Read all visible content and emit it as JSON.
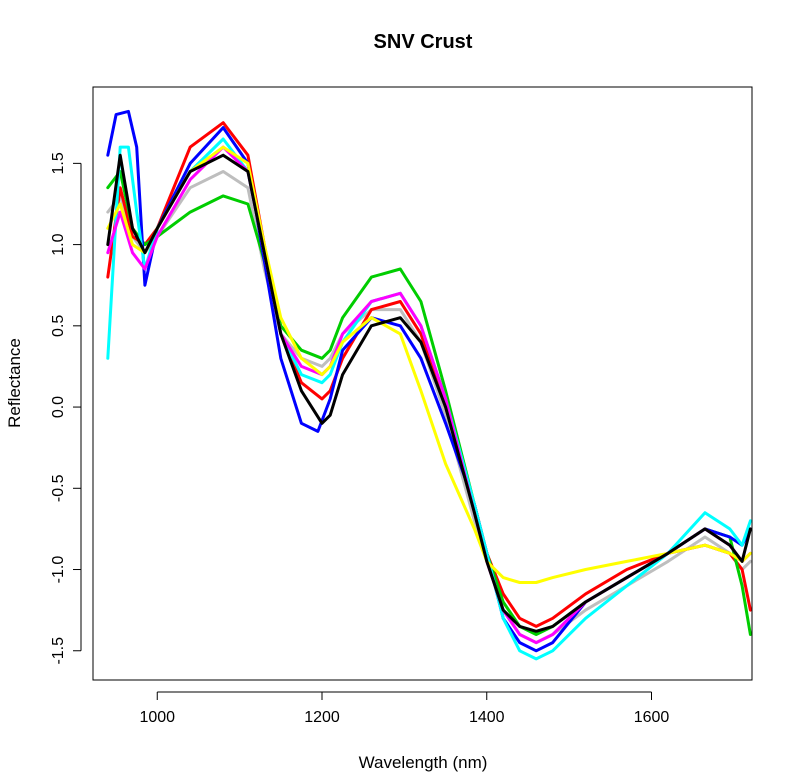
{
  "chart_data": {
    "type": "line",
    "title": "SNV Crust",
    "xlabel": "Wavelength (nm)",
    "ylabel": "Reflectance",
    "xlim": [
      922,
      1722
    ],
    "ylim": [
      -1.68,
      1.97
    ],
    "x_ticks": [
      1000,
      1200,
      1400,
      1600
    ],
    "y_ticks": [
      -1.5,
      -1.0,
      -0.5,
      0.0,
      0.5,
      1.0,
      1.5
    ],
    "x_tick_labels": [
      "1000",
      "1200",
      "1400",
      "1600"
    ],
    "y_tick_labels": [
      "-1.5",
      "-1.0",
      "-0.5",
      "0.0",
      "0.5",
      "1.0",
      "1.5"
    ],
    "grid": false,
    "legend": "none",
    "palette": [
      "#000000",
      "#ff0000",
      "#00cd00",
      "#0000ff",
      "#00ffff",
      "#ff00ff",
      "#ffff00",
      "#bebebe"
    ],
    "series": [
      {
        "color": "#bebebe",
        "x": [
          940,
          955,
          970,
          985,
          1000,
          1040,
          1080,
          1110,
          1130,
          1150,
          1175,
          1200,
          1210,
          1225,
          1260,
          1295,
          1320,
          1350,
          1385,
          1400,
          1420,
          1440,
          1460,
          1480,
          1520,
          1570,
          1620,
          1665,
          1695,
          1710,
          1720
        ],
        "y": [
          1.2,
          1.3,
          1.05,
          0.95,
          1.05,
          1.35,
          1.45,
          1.35,
          0.85,
          0.45,
          0.3,
          0.25,
          0.3,
          0.45,
          0.6,
          0.6,
          0.4,
          -0.05,
          -0.7,
          -0.9,
          -1.25,
          -1.4,
          -1.45,
          -1.4,
          -1.25,
          -1.1,
          -0.95,
          -0.8,
          -0.9,
          -1.0,
          -0.95
        ]
      },
      {
        "color": "#ff0000",
        "x": [
          940,
          955,
          970,
          985,
          1000,
          1040,
          1080,
          1110,
          1130,
          1150,
          1175,
          1200,
          1210,
          1225,
          1260,
          1295,
          1320,
          1350,
          1385,
          1400,
          1420,
          1440,
          1460,
          1480,
          1520,
          1570,
          1620,
          1665,
          1695,
          1710,
          1720
        ],
        "y": [
          0.8,
          1.35,
          1.05,
          1.0,
          1.1,
          1.6,
          1.75,
          1.55,
          1.0,
          0.45,
          0.15,
          0.05,
          0.1,
          0.3,
          0.6,
          0.65,
          0.45,
          0.0,
          -0.6,
          -0.9,
          -1.15,
          -1.3,
          -1.35,
          -1.3,
          -1.15,
          -1.0,
          -0.9,
          -0.85,
          -0.9,
          -1.0,
          -1.25
        ]
      },
      {
        "color": "#00cd00",
        "x": [
          940,
          955,
          970,
          985,
          1000,
          1040,
          1080,
          1110,
          1130,
          1150,
          1175,
          1200,
          1210,
          1225,
          1260,
          1295,
          1320,
          1350,
          1385,
          1400,
          1420,
          1440,
          1460,
          1480,
          1520,
          1570,
          1620,
          1665,
          1695,
          1710,
          1720
        ],
        "y": [
          1.35,
          1.45,
          1.1,
          1.0,
          1.05,
          1.2,
          1.3,
          1.25,
          0.9,
          0.5,
          0.35,
          0.3,
          0.35,
          0.55,
          0.8,
          0.85,
          0.65,
          0.1,
          -0.6,
          -0.9,
          -1.2,
          -1.35,
          -1.4,
          -1.35,
          -1.2,
          -1.05,
          -0.9,
          -0.75,
          -0.8,
          -1.1,
          -1.4
        ]
      },
      {
        "color": "#0000ff",
        "x": [
          940,
          950,
          965,
          975,
          985,
          1000,
          1040,
          1080,
          1110,
          1130,
          1150,
          1175,
          1195,
          1210,
          1225,
          1260,
          1295,
          1320,
          1350,
          1385,
          1400,
          1420,
          1440,
          1460,
          1480,
          1520,
          1570,
          1620,
          1665,
          1695,
          1710,
          1720
        ],
        "y": [
          1.55,
          1.8,
          1.82,
          1.6,
          0.75,
          1.1,
          1.5,
          1.72,
          1.5,
          0.9,
          0.3,
          -0.1,
          -0.15,
          0.05,
          0.35,
          0.55,
          0.5,
          0.3,
          -0.1,
          -0.6,
          -0.9,
          -1.3,
          -1.45,
          -1.5,
          -1.45,
          -1.2,
          -1.05,
          -0.9,
          -0.75,
          -0.8,
          -0.85,
          -0.75
        ]
      },
      {
        "color": "#00ffff",
        "x": [
          940,
          955,
          965,
          975,
          985,
          1000,
          1040,
          1080,
          1110,
          1130,
          1150,
          1175,
          1200,
          1210,
          1225,
          1260,
          1295,
          1320,
          1350,
          1385,
          1400,
          1420,
          1440,
          1460,
          1480,
          1520,
          1570,
          1620,
          1665,
          1695,
          1710,
          1720
        ],
        "y": [
          0.3,
          1.6,
          1.6,
          1.2,
          0.85,
          1.1,
          1.45,
          1.65,
          1.45,
          0.95,
          0.45,
          0.2,
          0.15,
          0.2,
          0.4,
          0.65,
          0.7,
          0.5,
          0.05,
          -0.6,
          -0.9,
          -1.3,
          -1.5,
          -1.55,
          -1.5,
          -1.3,
          -1.1,
          -0.9,
          -0.65,
          -0.75,
          -0.85,
          -0.7
        ]
      },
      {
        "color": "#ff00ff",
        "x": [
          940,
          955,
          970,
          985,
          1000,
          1040,
          1080,
          1110,
          1130,
          1150,
          1175,
          1200,
          1210,
          1225,
          1260,
          1295,
          1320,
          1350,
          1385,
          1400,
          1420,
          1440,
          1460,
          1480,
          1520,
          1570,
          1620,
          1665,
          1695,
          1710,
          1720
        ],
        "y": [
          0.95,
          1.2,
          0.95,
          0.85,
          1.05,
          1.4,
          1.6,
          1.45,
          0.95,
          0.45,
          0.25,
          0.2,
          0.25,
          0.45,
          0.65,
          0.7,
          0.5,
          0.05,
          -0.65,
          -0.95,
          -1.25,
          -1.4,
          -1.45,
          -1.4,
          -1.2,
          -1.05,
          -0.9,
          -0.75,
          -0.85,
          -0.95,
          -0.9
        ]
      },
      {
        "color": "#ffff00",
        "x": [
          940,
          955,
          970,
          985,
          1000,
          1040,
          1080,
          1110,
          1130,
          1150,
          1175,
          1200,
          1210,
          1225,
          1260,
          1295,
          1320,
          1350,
          1385,
          1400,
          1420,
          1440,
          1460,
          1480,
          1520,
          1570,
          1620,
          1665,
          1695,
          1710,
          1720
        ],
        "y": [
          1.1,
          1.25,
          1.0,
          0.95,
          1.1,
          1.45,
          1.6,
          1.5,
          1.0,
          0.55,
          0.3,
          0.2,
          0.25,
          0.4,
          0.55,
          0.45,
          0.1,
          -0.35,
          -0.75,
          -0.95,
          -1.05,
          -1.08,
          -1.08,
          -1.05,
          -1.0,
          -0.95,
          -0.9,
          -0.85,
          -0.9,
          -0.95,
          -0.9
        ]
      },
      {
        "color": "#000000",
        "x": [
          940,
          955,
          970,
          985,
          1000,
          1040,
          1080,
          1110,
          1130,
          1150,
          1175,
          1200,
          1210,
          1225,
          1260,
          1295,
          1320,
          1350,
          1385,
          1400,
          1420,
          1440,
          1460,
          1480,
          1520,
          1570,
          1620,
          1665,
          1695,
          1710,
          1720
        ],
        "y": [
          1.0,
          1.55,
          1.1,
          0.95,
          1.1,
          1.45,
          1.55,
          1.45,
          0.95,
          0.45,
          0.1,
          -0.1,
          -0.05,
          0.2,
          0.5,
          0.55,
          0.4,
          0.0,
          -0.65,
          -0.95,
          -1.25,
          -1.35,
          -1.38,
          -1.35,
          -1.2,
          -1.05,
          -0.9,
          -0.75,
          -0.85,
          -0.95,
          -0.75
        ]
      }
    ]
  }
}
